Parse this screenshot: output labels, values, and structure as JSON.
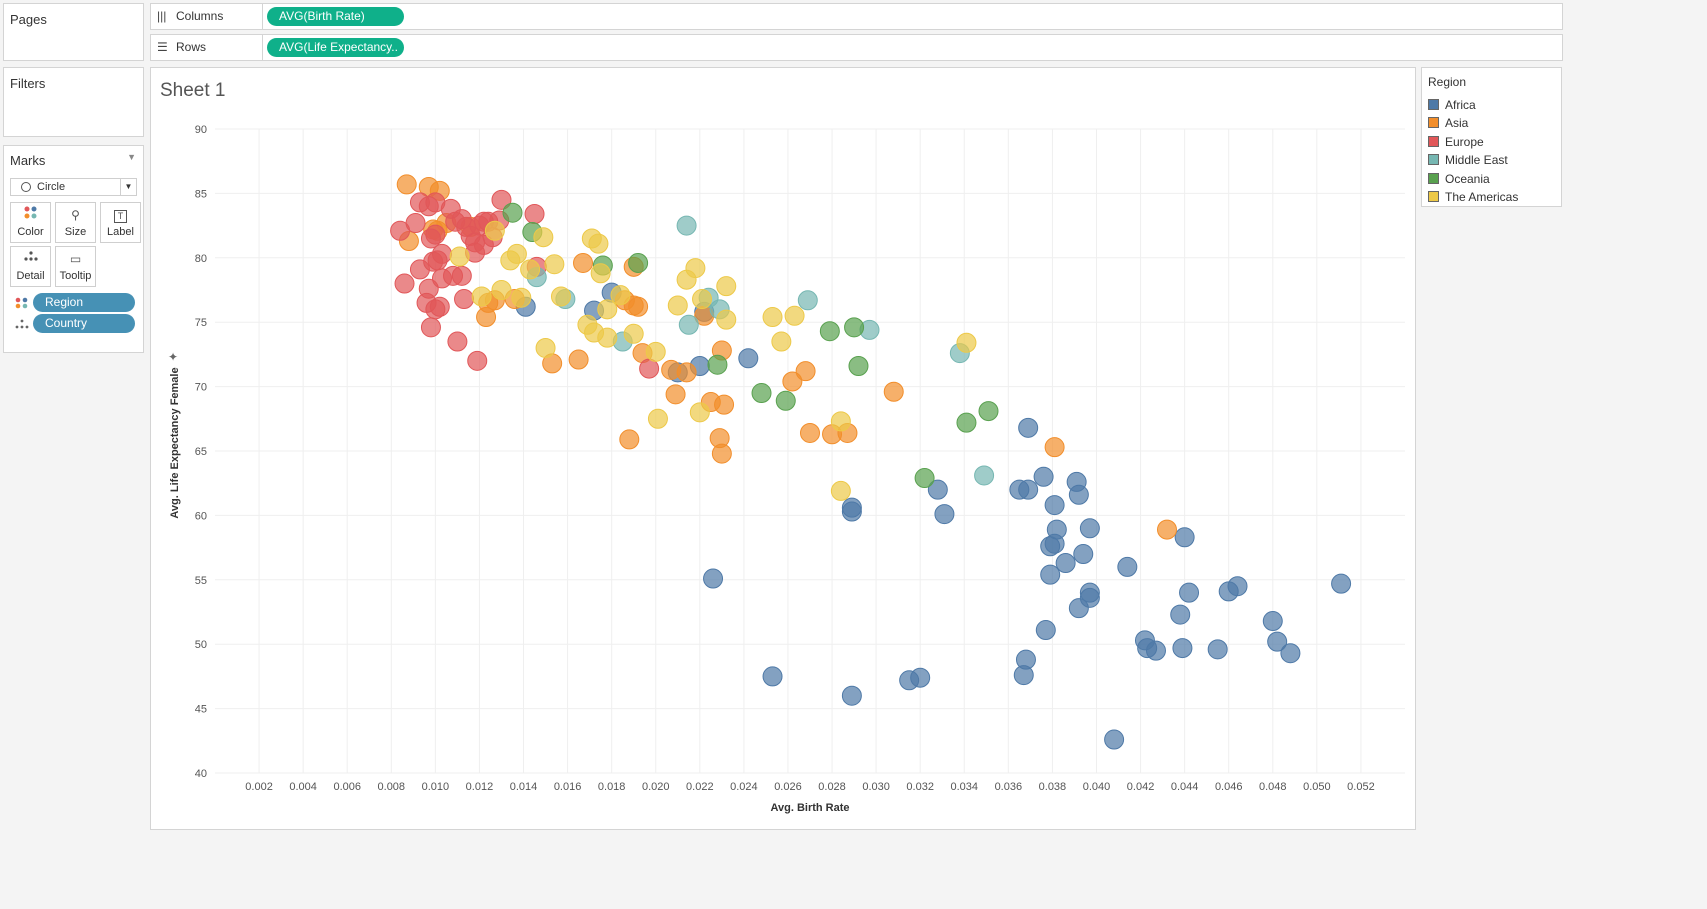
{
  "pages": {
    "title": "Pages"
  },
  "filters": {
    "title": "Filters"
  },
  "shelves": {
    "columns": {
      "label": "Columns",
      "pill": "AVG(Birth Rate)"
    },
    "rows": {
      "label": "Rows",
      "pill": "AVG(Life Expectancy.."
    }
  },
  "marks": {
    "title": "Marks",
    "type": "Circle",
    "buttons": [
      "Color",
      "Size",
      "Label",
      "Detail",
      "Tooltip"
    ],
    "fields": [
      {
        "icon": "color-dots-icon",
        "label": "Region"
      },
      {
        "icon": "detail-dots-icon",
        "label": "Country"
      }
    ]
  },
  "sheet": {
    "title": "Sheet 1"
  },
  "legend": {
    "title": "Region",
    "items": [
      {
        "label": "Africa",
        "color": "#4e79a7"
      },
      {
        "label": "Asia",
        "color": "#f28e2b"
      },
      {
        "label": "Europe",
        "color": "#e15759"
      },
      {
        "label": "Middle East",
        "color": "#76b7b2"
      },
      {
        "label": "Oceania",
        "color": "#59a14f"
      },
      {
        "label": "The Americas",
        "color": "#edc948"
      }
    ]
  },
  "chart_data": {
    "type": "scatter",
    "xlabel": "Avg. Birth Rate",
    "ylabel": "Avg. Life Expectancy Female",
    "xlim": [
      0.0,
      0.054
    ],
    "ylim": [
      40,
      90
    ],
    "xticks": [
      "0.002",
      "0.004",
      "0.006",
      "0.008",
      "0.010",
      "0.012",
      "0.014",
      "0.016",
      "0.018",
      "0.020",
      "0.022",
      "0.024",
      "0.026",
      "0.028",
      "0.030",
      "0.032",
      "0.034",
      "0.036",
      "0.038",
      "0.040",
      "0.042",
      "0.044",
      "0.046",
      "0.048",
      "0.050",
      "0.052"
    ],
    "yticks": [
      "40",
      "45",
      "50",
      "55",
      "60",
      "65",
      "70",
      "75",
      "80",
      "85",
      "90"
    ],
    "series": [
      {
        "name": "Africa",
        "points": [
          [
            0.0226,
            55.1
          ],
          [
            0.0253,
            47.5
          ],
          [
            0.0289,
            46.0
          ],
          [
            0.0289,
            60.6
          ],
          [
            0.0289,
            60.3
          ],
          [
            0.0315,
            47.2
          ],
          [
            0.032,
            47.4
          ],
          [
            0.0328,
            62.0
          ],
          [
            0.0331,
            60.1
          ],
          [
            0.0365,
            62.0
          ],
          [
            0.0369,
            66.8
          ],
          [
            0.0369,
            62.0
          ],
          [
            0.0376,
            63.0
          ],
          [
            0.0381,
            60.8
          ],
          [
            0.0382,
            58.9
          ],
          [
            0.0379,
            57.6
          ],
          [
            0.0381,
            57.8
          ],
          [
            0.0386,
            56.3
          ],
          [
            0.0379,
            55.4
          ],
          [
            0.0391,
            62.6
          ],
          [
            0.0392,
            61.6
          ],
          [
            0.0397,
            59.0
          ],
          [
            0.0394,
            57.0
          ],
          [
            0.0392,
            52.8
          ],
          [
            0.0397,
            54.0
          ],
          [
            0.0397,
            53.6
          ],
          [
            0.0377,
            51.1
          ],
          [
            0.0368,
            48.8
          ],
          [
            0.0367,
            47.6
          ],
          [
            0.0408,
            42.6
          ],
          [
            0.0414,
            56.0
          ],
          [
            0.0422,
            50.3
          ],
          [
            0.0423,
            49.7
          ],
          [
            0.0427,
            49.5
          ],
          [
            0.0438,
            52.3
          ],
          [
            0.044,
            58.3
          ],
          [
            0.0442,
            54.0
          ],
          [
            0.0439,
            49.7
          ],
          [
            0.0455,
            49.6
          ],
          [
            0.046,
            54.1
          ],
          [
            0.0464,
            54.5
          ],
          [
            0.048,
            51.8
          ],
          [
            0.0482,
            50.2
          ],
          [
            0.0488,
            49.3
          ],
          [
            0.0511,
            54.7
          ],
          [
            0.0141,
            76.2
          ],
          [
            0.0172,
            75.9
          ],
          [
            0.018,
            77.3
          ],
          [
            0.022,
            71.6
          ],
          [
            0.021,
            71.1
          ],
          [
            0.0242,
            72.2
          ],
          [
            0.0222,
            75.8
          ]
        ]
      },
      {
        "name": "Asia",
        "points": [
          [
            0.0087,
            85.7
          ],
          [
            0.0097,
            85.5
          ],
          [
            0.0102,
            85.2
          ],
          [
            0.0088,
            81.3
          ],
          [
            0.0101,
            82.1
          ],
          [
            0.0105,
            82.7
          ],
          [
            0.0099,
            82.2
          ],
          [
            0.0116,
            82.4
          ],
          [
            0.0123,
            75.4
          ],
          [
            0.0124,
            76.5
          ],
          [
            0.0127,
            76.7
          ],
          [
            0.0136,
            76.8
          ],
          [
            0.0153,
            71.8
          ],
          [
            0.0165,
            72.1
          ],
          [
            0.0167,
            79.6
          ],
          [
            0.0186,
            76.7
          ],
          [
            0.019,
            76.3
          ],
          [
            0.019,
            79.3
          ],
          [
            0.0192,
            76.2
          ],
          [
            0.0194,
            72.6
          ],
          [
            0.0188,
            65.9
          ],
          [
            0.0207,
            71.3
          ],
          [
            0.0209,
            69.4
          ],
          [
            0.0214,
            71.1
          ],
          [
            0.0225,
            68.8
          ],
          [
            0.0222,
            75.5
          ],
          [
            0.023,
            72.8
          ],
          [
            0.0229,
            66.0
          ],
          [
            0.0231,
            68.6
          ],
          [
            0.023,
            64.8
          ],
          [
            0.0262,
            70.4
          ],
          [
            0.0268,
            71.2
          ],
          [
            0.027,
            66.4
          ],
          [
            0.028,
            66.3
          ],
          [
            0.0287,
            66.4
          ],
          [
            0.0308,
            69.6
          ],
          [
            0.0381,
            65.3
          ],
          [
            0.0432,
            58.9
          ]
        ]
      },
      {
        "name": "Europe",
        "points": [
          [
            0.0084,
            82.1
          ],
          [
            0.0091,
            82.7
          ],
          [
            0.0093,
            84.3
          ],
          [
            0.0097,
            84.0
          ],
          [
            0.01,
            84.3
          ],
          [
            0.01,
            81.8
          ],
          [
            0.0098,
            81.5
          ],
          [
            0.0103,
            80.3
          ],
          [
            0.0107,
            83.8
          ],
          [
            0.0109,
            82.8
          ],
          [
            0.0112,
            83.0
          ],
          [
            0.0114,
            82.4
          ],
          [
            0.0116,
            81.7
          ],
          [
            0.0118,
            81.2
          ],
          [
            0.012,
            82.5
          ],
          [
            0.0122,
            82.8
          ],
          [
            0.0124,
            82.8
          ],
          [
            0.0126,
            81.6
          ],
          [
            0.0129,
            82.9
          ],
          [
            0.013,
            84.5
          ],
          [
            0.0145,
            83.4
          ],
          [
            0.0146,
            79.3
          ],
          [
            0.0086,
            78.0
          ],
          [
            0.0093,
            79.1
          ],
          [
            0.0097,
            77.6
          ],
          [
            0.0099,
            79.7
          ],
          [
            0.0101,
            79.8
          ],
          [
            0.0103,
            78.4
          ],
          [
            0.0108,
            78.6
          ],
          [
            0.0112,
            78.6
          ],
          [
            0.0118,
            80.4
          ],
          [
            0.0122,
            81.0
          ],
          [
            0.0096,
            76.5
          ],
          [
            0.01,
            76.0
          ],
          [
            0.0102,
            76.2
          ],
          [
            0.0098,
            74.6
          ],
          [
            0.011,
            73.5
          ],
          [
            0.0113,
            76.8
          ],
          [
            0.0119,
            72.0
          ],
          [
            0.0197,
            71.4
          ]
        ]
      },
      {
        "name": "Middle East",
        "points": [
          [
            0.0214,
            82.5
          ],
          [
            0.0146,
            78.5
          ],
          [
            0.0159,
            76.8
          ],
          [
            0.0185,
            73.5
          ],
          [
            0.0215,
            74.8
          ],
          [
            0.0224,
            76.9
          ],
          [
            0.0229,
            76.0
          ],
          [
            0.0269,
            76.7
          ],
          [
            0.0297,
            74.4
          ],
          [
            0.0338,
            72.6
          ],
          [
            0.0349,
            63.1
          ]
        ]
      },
      {
        "name": "Oceania",
        "points": [
          [
            0.0135,
            83.5
          ],
          [
            0.0144,
            82.0
          ],
          [
            0.0176,
            79.4
          ],
          [
            0.0192,
            79.6
          ],
          [
            0.0248,
            69.5
          ],
          [
            0.0259,
            68.9
          ],
          [
            0.0228,
            71.7
          ],
          [
            0.0279,
            74.3
          ],
          [
            0.029,
            74.6
          ],
          [
            0.0292,
            71.6
          ],
          [
            0.0322,
            62.9
          ],
          [
            0.0341,
            67.2
          ],
          [
            0.0351,
            68.1
          ]
        ]
      },
      {
        "name": "The Americas",
        "points": [
          [
            0.0111,
            80.1
          ],
          [
            0.0121,
            77.0
          ],
          [
            0.0127,
            82.1
          ],
          [
            0.013,
            77.5
          ],
          [
            0.0134,
            79.8
          ],
          [
            0.0137,
            80.3
          ],
          [
            0.0139,
            76.9
          ],
          [
            0.0143,
            79.1
          ],
          [
            0.0149,
            81.6
          ],
          [
            0.0154,
            79.5
          ],
          [
            0.0157,
            77.0
          ],
          [
            0.015,
            73.0
          ],
          [
            0.0169,
            74.8
          ],
          [
            0.0171,
            81.5
          ],
          [
            0.0174,
            81.1
          ],
          [
            0.0175,
            78.8
          ],
          [
            0.0178,
            76.0
          ],
          [
            0.0172,
            74.2
          ],
          [
            0.0178,
            73.8
          ],
          [
            0.0184,
            77.1
          ],
          [
            0.019,
            74.1
          ],
          [
            0.02,
            72.7
          ],
          [
            0.0201,
            67.5
          ],
          [
            0.021,
            76.3
          ],
          [
            0.0214,
            78.3
          ],
          [
            0.0218,
            79.2
          ],
          [
            0.0221,
            76.8
          ],
          [
            0.022,
            68.0
          ],
          [
            0.0232,
            77.8
          ],
          [
            0.0232,
            75.2
          ],
          [
            0.0253,
            75.4
          ],
          [
            0.0257,
            73.5
          ],
          [
            0.0263,
            75.5
          ],
          [
            0.0284,
            67.3
          ],
          [
            0.0284,
            61.9
          ],
          [
            0.0341,
            73.4
          ]
        ]
      }
    ]
  }
}
